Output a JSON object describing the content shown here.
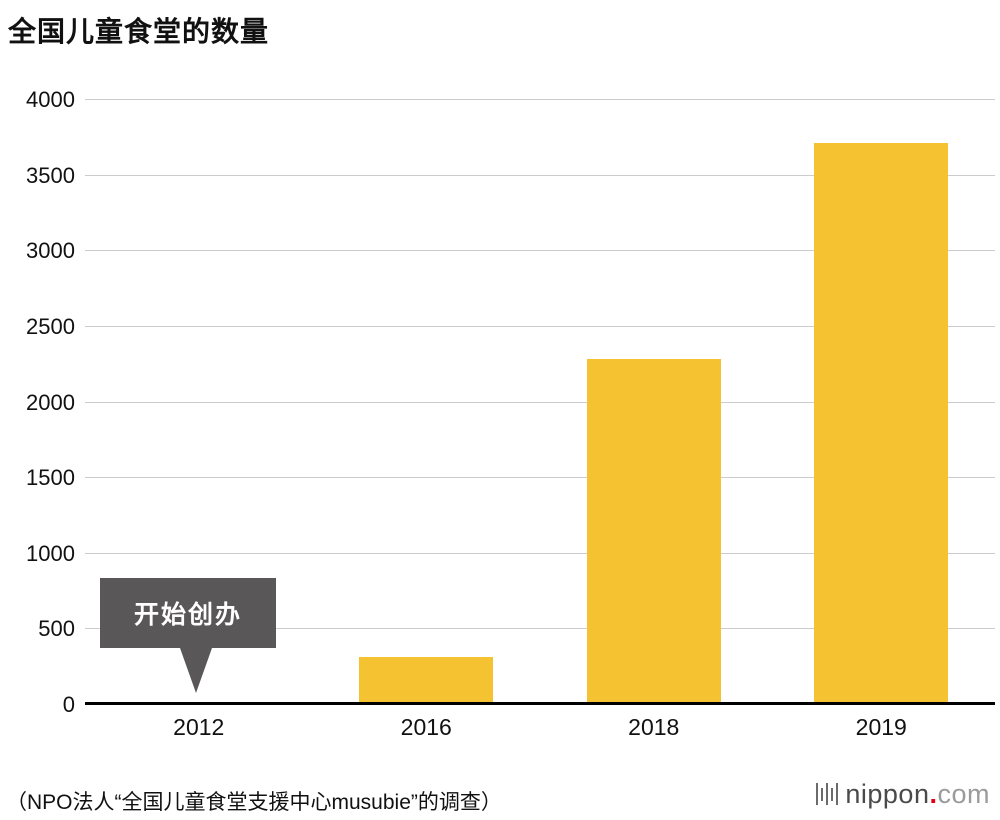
{
  "chart_data": {
    "type": "bar",
    "title": "全国儿童食堂的数量",
    "categories": [
      "2012",
      "2016",
      "2018",
      "2019"
    ],
    "values": [
      0,
      319,
      2286,
      3718
    ],
    "xlabel": "",
    "ylabel": "",
    "ylim": [
      0,
      4000
    ],
    "ytick_step": 500,
    "grid": "horizontal",
    "legend": "none",
    "bar_color": "#F5C232",
    "annotation": {
      "text": "开始创办",
      "target_category": "2012"
    }
  },
  "footer": {
    "source": "（NPO法人“全国儿童食堂支援中心musubie”的调查）",
    "logo": {
      "name": "nippon",
      "dot": ".",
      "tld": "com"
    }
  },
  "colors": {
    "bar": "#F5C232",
    "gridline": "#cccccc",
    "axis": "#000000",
    "annotation_bg": "#595757",
    "logo_dot": "#E60012"
  }
}
